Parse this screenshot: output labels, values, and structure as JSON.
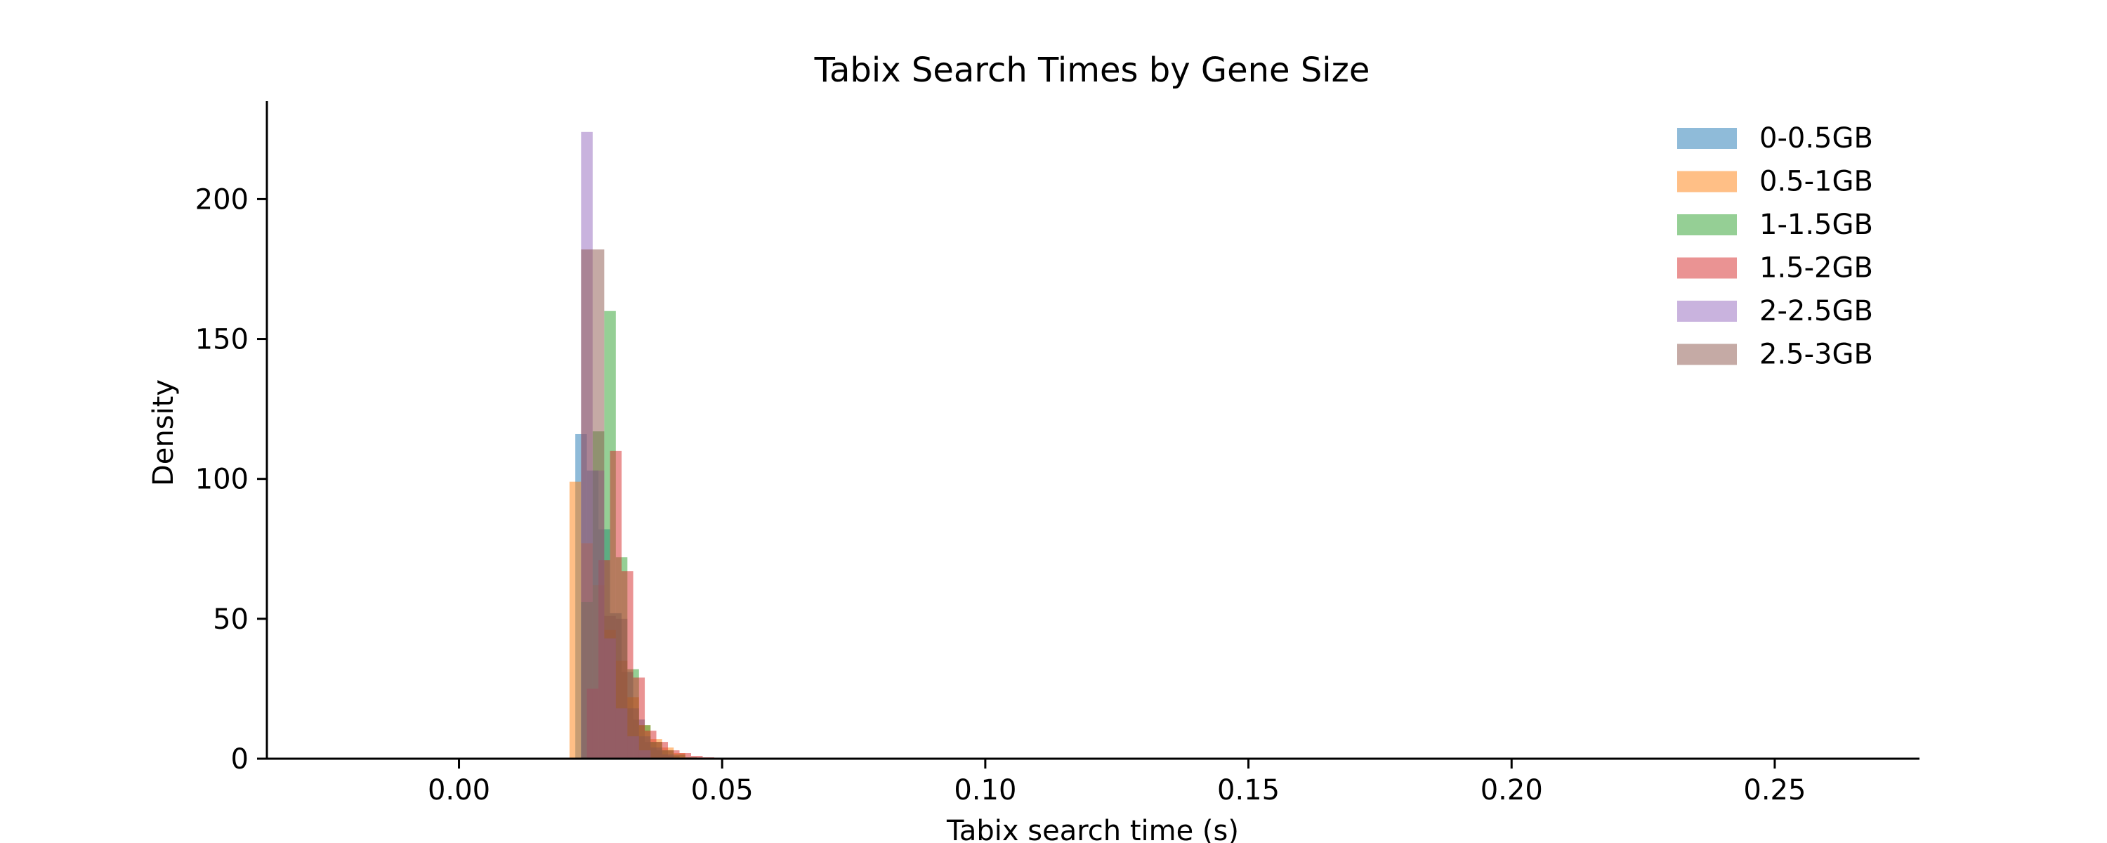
{
  "chart_data": {
    "type": "bar",
    "title": "Tabix Search Times by Gene Size",
    "xlabel": "Tabix search time (s)",
    "ylabel": "Density",
    "xlim": [
      -0.0365,
      0.2775
    ],
    "ylim": [
      0,
      235
    ],
    "x_ticks": [
      0.0,
      0.05,
      0.1,
      0.15,
      0.2,
      0.25
    ],
    "x_tick_labels": [
      "0.00",
      "0.05",
      "0.10",
      "0.15",
      "0.20",
      "0.25"
    ],
    "y_ticks": [
      0,
      50,
      100,
      150,
      200
    ],
    "y_tick_labels": [
      "0",
      "50",
      "100",
      "150",
      "200"
    ],
    "grid": false,
    "legend_position": "top-right",
    "bin_width": 0.0022,
    "alpha": 0.5,
    "series": [
      {
        "name": "0-0.5GB",
        "color": "#1f77b4",
        "bin_starts": [
          0.0221,
          0.0243,
          0.0265,
          0.0287,
          0.0309,
          0.0331,
          0.0353,
          0.0375,
          0.0397
        ],
        "values": [
          116,
          103,
          82,
          52,
          31,
          14,
          6,
          3,
          1
        ]
      },
      {
        "name": "0.5-1GB",
        "color": "#ff7f0e",
        "bin_starts": [
          0.021,
          0.0232,
          0.0254,
          0.0276,
          0.0298,
          0.032,
          0.0342,
          0.0364,
          0.0386,
          0.0408
        ],
        "values": [
          99,
          77,
          62,
          46,
          35,
          22,
          12,
          7,
          4,
          2
        ]
      },
      {
        "name": "1-1.5GB",
        "color": "#2ca02c",
        "bin_starts": [
          0.0232,
          0.0254,
          0.0276,
          0.0298,
          0.032,
          0.0342,
          0.0364,
          0.0386,
          0.0408,
          0.043
        ],
        "values": [
          56,
          117,
          160,
          72,
          32,
          12,
          6,
          3,
          1.5,
          0.5
        ]
      },
      {
        "name": "1.5-2GB",
        "color": "#d62728",
        "bin_starts": [
          0.0243,
          0.0265,
          0.0287,
          0.0309,
          0.0331,
          0.0353,
          0.0375,
          0.0397,
          0.0419,
          0.0441,
          0.0463
        ],
        "values": [
          25,
          71,
          110,
          67,
          29,
          10,
          6,
          3,
          2,
          1,
          0.5
        ]
      },
      {
        "name": "2-2.5GB",
        "color": "#9467bd",
        "bin_starts": [
          0.0232,
          0.0254,
          0.0276,
          0.0298,
          0.032,
          0.0342
        ],
        "values": [
          224,
          103,
          43,
          18,
          8,
          3
        ]
      },
      {
        "name": "2.5-3GB",
        "color": "#8c564b",
        "bin_starts": [
          0.0232,
          0.0254,
          0.0276,
          0.0298,
          0.032,
          0.0342,
          0.0364,
          0.0386
        ],
        "values": [
          182,
          182,
          51,
          50,
          18,
          8,
          4,
          1.5
        ]
      }
    ]
  }
}
